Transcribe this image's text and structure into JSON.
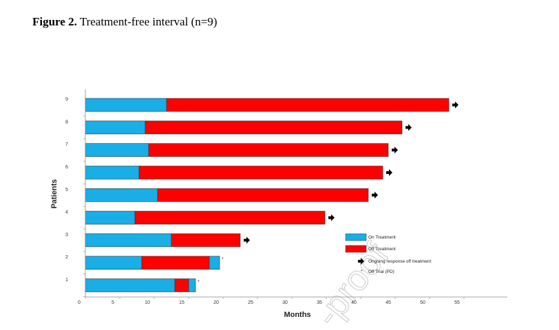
{
  "figure": {
    "label": "Figure 2.",
    "title": "Treatment-free interval (n=9)"
  },
  "watermark": {
    "text": "-proof",
    "color": "#d0d0d0"
  },
  "chart_data": {
    "type": "bar",
    "orientation": "horizontal",
    "stacked": true,
    "xlabel": "Months",
    "ylabel": "Patients",
    "xlim": [
      0,
      62
    ],
    "xticks": [
      0,
      5,
      10,
      15,
      20,
      25,
      30,
      35,
      40,
      45,
      50,
      55
    ],
    "categories": [
      "1",
      "2",
      "3",
      "4",
      "5",
      "6",
      "7",
      "8",
      "9"
    ],
    "series": [
      {
        "name": "On Treatment",
        "color": "#19aee6",
        "values": [
          13.0,
          8.2,
          12.5,
          7.2,
          10.5,
          7.8,
          9.2,
          8.7,
          11.8
        ]
      },
      {
        "name": "Off Treatment",
        "color": "#ff0000",
        "values": [
          2.0,
          9.8,
          10.0,
          27.6,
          30.6,
          35.4,
          34.8,
          37.3,
          41.0
        ]
      },
      {
        "name": "Off Trial (PD)",
        "color": "#19aee6",
        "values": [
          1.0,
          1.5,
          0,
          0,
          0,
          0,
          0,
          0,
          0
        ]
      }
    ],
    "markers": {
      "ongoing_response": [
        "3",
        "4",
        "5",
        "6",
        "7",
        "8",
        "9"
      ],
      "off_trial": [
        "1",
        "2"
      ]
    },
    "legend": {
      "placement": "right",
      "items": [
        {
          "label": "On Treatment",
          "kind": "swatch",
          "color": "#19aee6"
        },
        {
          "label": "Off Treatment",
          "kind": "swatch",
          "color": "#ff0000"
        },
        {
          "label": "Ongoing response off treatment",
          "kind": "arrow"
        },
        {
          "label": "Off Trial (PD)",
          "kind": "star",
          "symbol": "*"
        }
      ]
    },
    "grid": false
  }
}
